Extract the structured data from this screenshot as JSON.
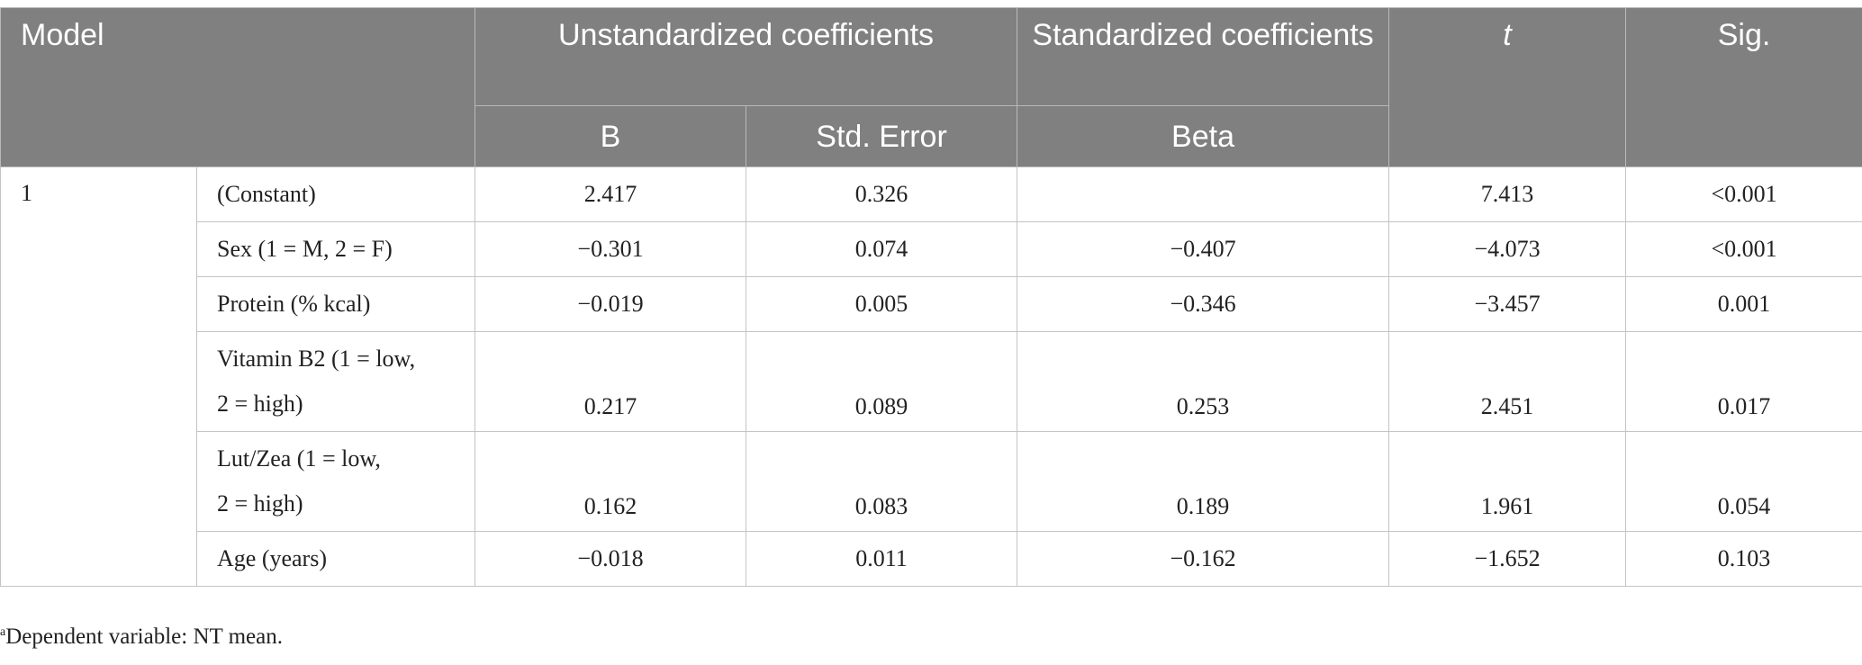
{
  "header": {
    "model": "Model",
    "unstandardized": "Unstandardized coefficients",
    "standardized": "Standardized coefficients",
    "t": "t",
    "sig": "Sig.",
    "b": "B",
    "std_error": "Std. Error",
    "beta": "Beta"
  },
  "model_number": "1",
  "rows": [
    {
      "predictor": "(Constant)",
      "b": "2.417",
      "se": "0.326",
      "beta": "",
      "t": "7.413",
      "sig": "<0.001"
    },
    {
      "predictor": "Sex (1 = M, 2 = F)",
      "b": "−0.301",
      "se": "0.074",
      "beta": "−0.407",
      "t": "−4.073",
      "sig": "<0.001"
    },
    {
      "predictor": "Protein (% kcal)",
      "b": "−0.019",
      "se": "0.005",
      "beta": "−0.346",
      "t": "−3.457",
      "sig": "0.001"
    },
    {
      "predictor_line1": "Vitamin B2 (1 = low,",
      "predictor_line2": "2 = high)",
      "b": "0.217",
      "se": "0.089",
      "beta": "0.253",
      "t": "2.451",
      "sig": "0.017"
    },
    {
      "predictor_line1": "Lut/Zea (1 = low,",
      "predictor_line2": "2 = high)",
      "b": "0.162",
      "se": "0.083",
      "beta": "0.189",
      "t": "1.961",
      "sig": "0.054"
    },
    {
      "predictor": "Age (years)",
      "b": "−0.018",
      "se": "0.011",
      "beta": "−0.162",
      "t": "−1.652",
      "sig": "0.103"
    }
  ],
  "footnote": {
    "marker": "a",
    "text": "Dependent variable: NT mean."
  }
}
